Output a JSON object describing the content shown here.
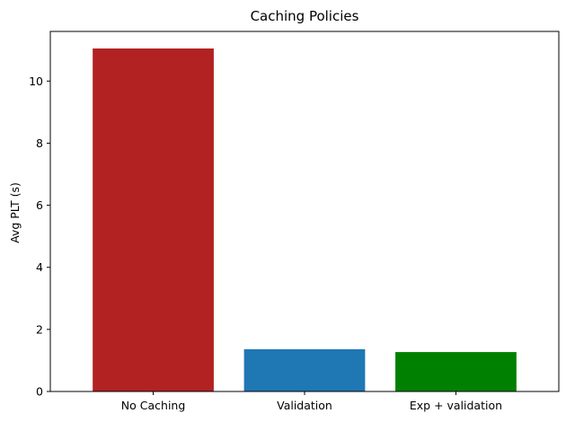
{
  "chart_data": {
    "type": "bar",
    "title": "Caching Policies",
    "xlabel": "",
    "ylabel": "Avg PLT (s)",
    "categories": [
      "No Caching",
      "Validation",
      "Exp + validation"
    ],
    "values": [
      11.05,
      1.36,
      1.27
    ],
    "colors": [
      "#b22222",
      "#1f77b4",
      "#008000"
    ],
    "ylim": [
      0,
      11.6
    ],
    "yticks": [
      0,
      2,
      4,
      6,
      8,
      10
    ],
    "grid": false,
    "legend": "none"
  }
}
